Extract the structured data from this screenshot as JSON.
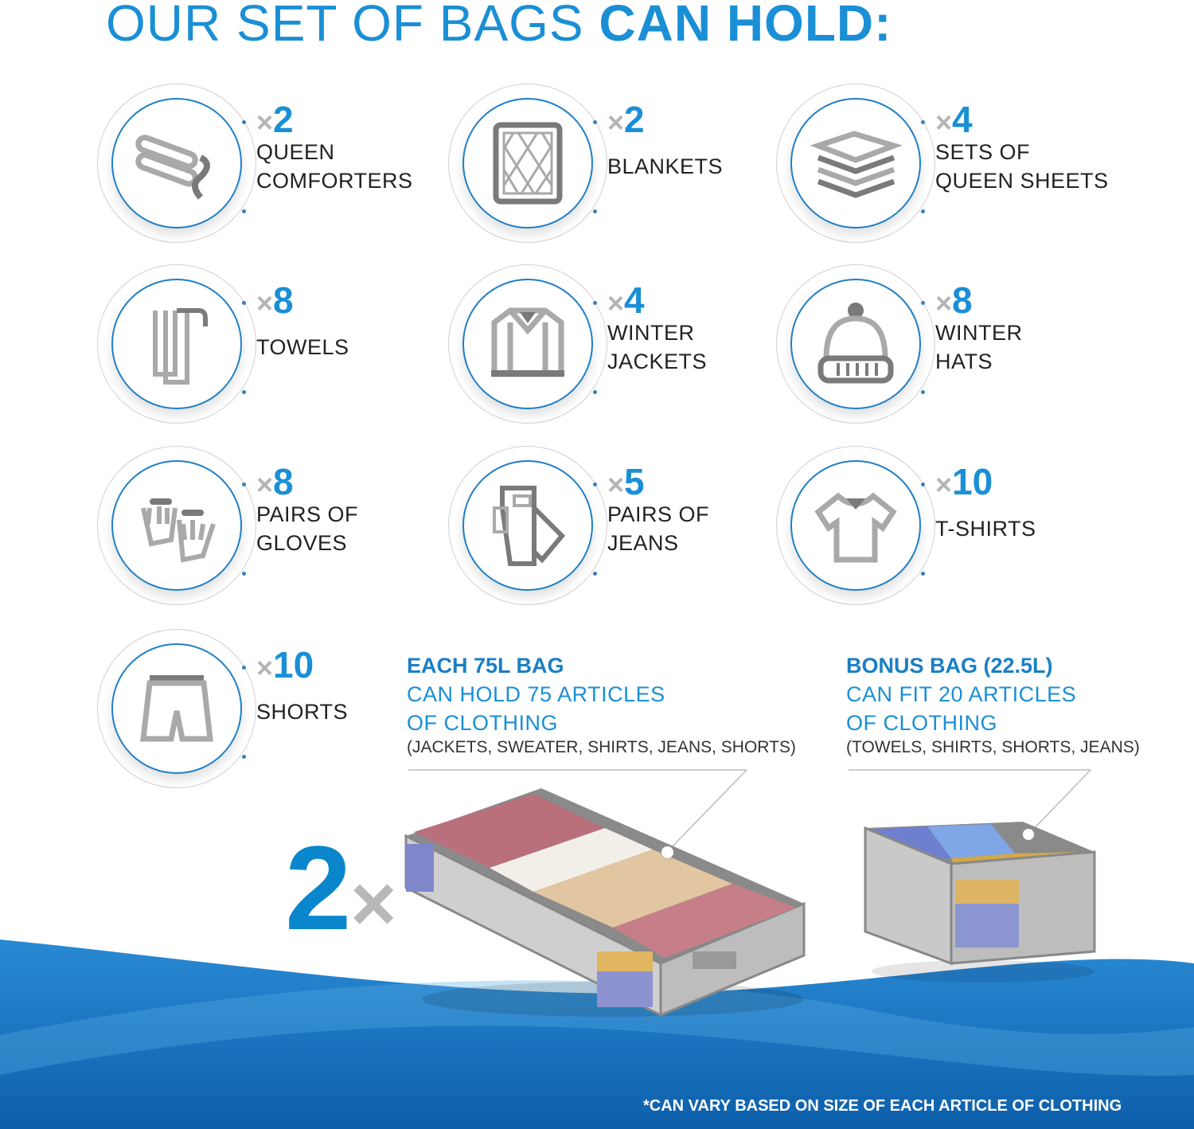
{
  "title": {
    "light": "OUR SET OF BAGS ",
    "bold": "CAN HOLD:"
  },
  "colors": {
    "accent": "#1a8fd6",
    "icon_gray": "#a8a8a8",
    "wave_blue": "#1479c4"
  },
  "multiplier_symbol": "×",
  "items": [
    {
      "count": "2",
      "label": [
        "QUEEN",
        "COMFORTERS"
      ],
      "icon": "folded-comforter-icon"
    },
    {
      "count": "2",
      "label": [
        "BLANKETS"
      ],
      "icon": "quilted-blanket-icon"
    },
    {
      "count": "4",
      "label": [
        "SETS OF",
        "QUEEN SHEETS"
      ],
      "icon": "stacked-sheets-icon"
    },
    {
      "count": "8",
      "label": [
        "TOWELS"
      ],
      "icon": "hanging-towel-icon"
    },
    {
      "count": "4",
      "label": [
        "WINTER",
        "JACKETS"
      ],
      "icon": "jacket-icon"
    },
    {
      "count": "8",
      "label": [
        "WINTER",
        "HATS"
      ],
      "icon": "beanie-hat-icon"
    },
    {
      "count": "8",
      "label": [
        "PAIRS OF",
        "GLOVES"
      ],
      "icon": "gloves-icon"
    },
    {
      "count": "5",
      "label": [
        "PAIRS OF",
        "JEANS"
      ],
      "icon": "folded-jeans-icon"
    },
    {
      "count": "10",
      "label": [
        "T-SHIRTS"
      ],
      "icon": "t-shirt-icon"
    },
    {
      "count": "10",
      "label": [
        "SHORTS"
      ],
      "icon": "shorts-icon"
    }
  ],
  "main_bag": {
    "heading": "EACH 75L BAG",
    "line1": "CAN HOLD 75 ARTICLES",
    "line2": "OF CLOTHING",
    "examples": "(JACKETS, SWEATER, SHIRTS, JEANS, SHORTS)",
    "quantity": "2",
    "quantity_symbol": "×"
  },
  "bonus_bag": {
    "heading": "BONUS BAG (22.5L)",
    "line1": "CAN FIT 20 ARTICLES",
    "line2": "OF CLOTHING",
    "examples": "(TOWELS, SHIRTS, SHORTS, JEANS)"
  },
  "footnote": "*CAN VARY BASED ON SIZE OF EACH ARTICLE OF CLOTHING"
}
